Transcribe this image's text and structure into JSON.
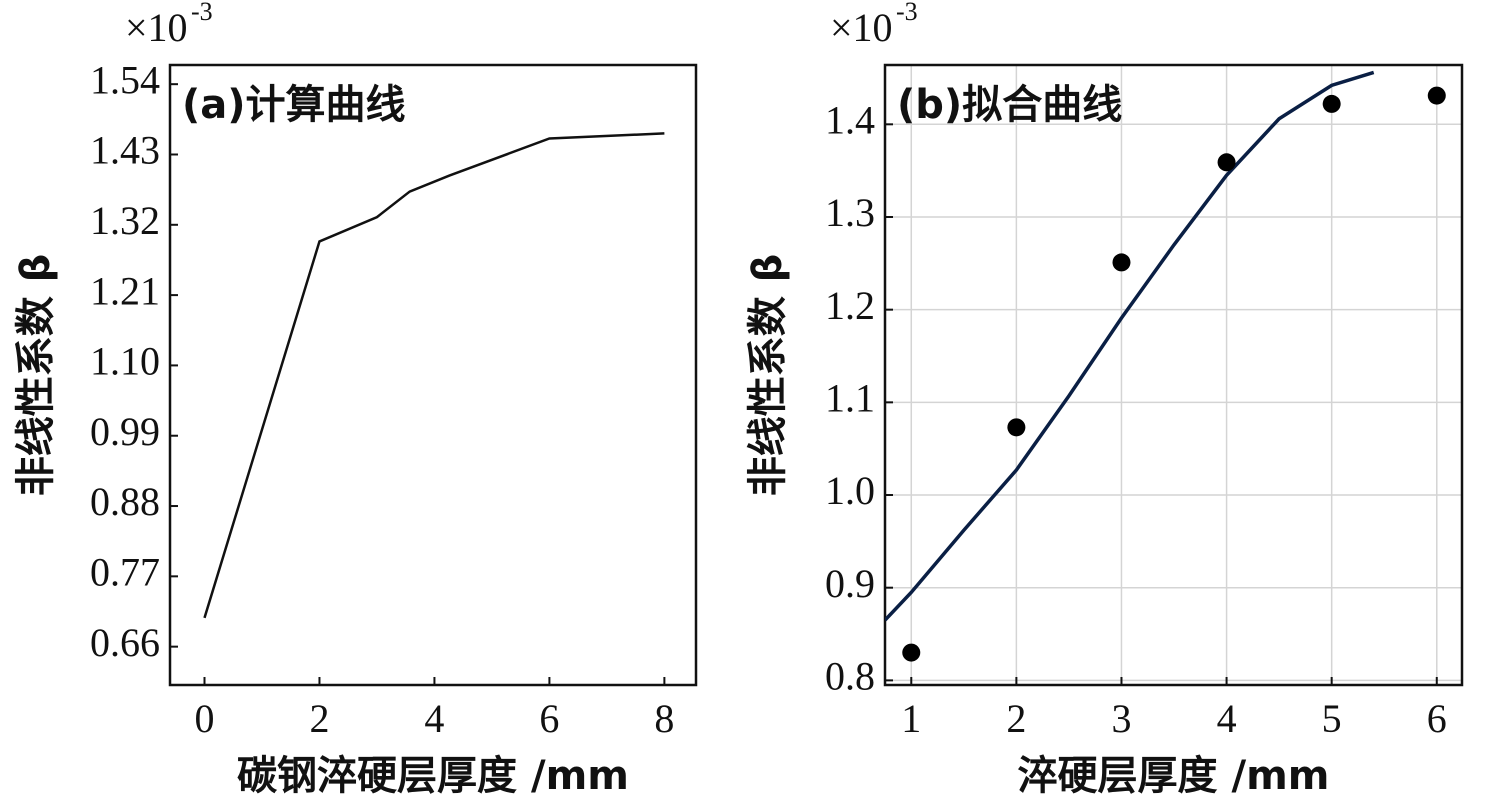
{
  "chart_data": [
    {
      "type": "line",
      "title": "(a)计算曲线",
      "x_label": "碳钢淬硬层厚度 /mm",
      "y_label": "非线性系数 β",
      "scale_label": "×10",
      "scale_exponent": "-3",
      "x": [
        0,
        2,
        3,
        3.57,
        4.26,
        6,
        8
      ],
      "values": [
        0.705,
        1.294,
        1.332,
        1.372,
        1.397,
        1.455,
        1.463
      ],
      "color": "#111111",
      "xlim": [
        -0.6,
        8.55
      ],
      "xticks": [
        0,
        2,
        4,
        6,
        8
      ],
      "ylim": [
        0.6,
        1.57
      ],
      "yticks": [
        0.66,
        0.77,
        0.88,
        0.99,
        {
          "value": 1.1,
          "label": "1.10"
        },
        1.21,
        1.32,
        1.43,
        1.54
      ],
      "grid": false
    },
    {
      "type": "scatter",
      "title": "(b)拟合曲线",
      "x_label": "淬硬层厚度 /mm",
      "y_label": "非线性系数 β",
      "scale_label": "×10",
      "scale_exponent": "-3",
      "series": [
        {
          "type": "scatter",
          "color": "#000000",
          "x": [
            1,
            2,
            3,
            4,
            5,
            6
          ],
          "values": [
            0.83,
            1.073,
            1.251,
            1.359,
            1.422,
            1.431
          ]
        },
        {
          "type": "line",
          "color": "#0a1f44",
          "x": [
            0.75,
            1,
            1.5,
            2,
            2.5,
            3,
            3.5,
            4,
            4.5,
            5,
            5.4
          ],
          "values": [
            0.865,
            0.895,
            0.962,
            1.027,
            1.107,
            1.191,
            1.27,
            1.345,
            1.406,
            1.442,
            1.456
          ]
        }
      ],
      "xlim": [
        0.75,
        6.24
      ],
      "xticks": [
        1,
        2,
        3,
        4,
        5,
        6
      ],
      "ylim": [
        0.795,
        1.464
      ],
      "yticks": [
        0.8,
        0.9,
        {
          "value": 1.0,
          "label": "1.0"
        },
        1.1,
        1.2,
        1.3,
        1.4
      ],
      "grid": true
    }
  ]
}
